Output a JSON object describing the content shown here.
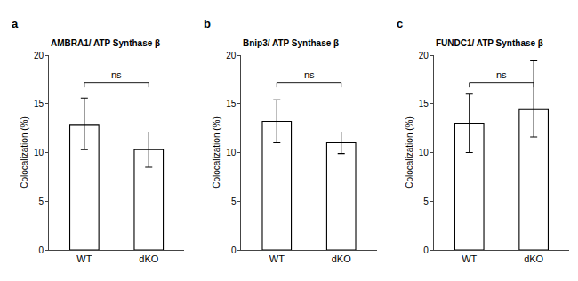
{
  "chart_data": [
    {
      "type": "bar",
      "title": "AMBRA1/ ATP Synthase β",
      "categories": [
        "WT",
        "dKO"
      ],
      "values": [
        12.8,
        10.3
      ],
      "err_low": [
        2.5,
        1.8
      ],
      "err_high": [
        2.8,
        1.8
      ],
      "color": "#ffffff",
      "ylabel": "Colocalization (%)",
      "ylim": [
        0,
        20
      ],
      "yticks": [
        0,
        5,
        10,
        15,
        20
      ],
      "grid": false,
      "annotations": [
        {
          "text": "a"
        },
        {
          "text": "ns",
          "y": 17.2
        }
      ]
    },
    {
      "type": "bar",
      "title": "Bnip3/ ATP Synthase β",
      "categories": [
        "WT",
        "dKO"
      ],
      "values": [
        13.2,
        11.0
      ],
      "err_low": [
        2.2,
        1.1
      ],
      "err_high": [
        2.2,
        1.1
      ],
      "color": "#ffffff",
      "ylabel": "Colocalization (%)",
      "ylim": [
        0,
        20
      ],
      "yticks": [
        0,
        5,
        10,
        15,
        20
      ],
      "grid": false,
      "annotations": [
        {
          "text": "b"
        },
        {
          "text": "ns",
          "y": 17.2
        }
      ]
    },
    {
      "type": "bar",
      "title": "FUNDC1/ ATP Synthase β",
      "categories": [
        "WT",
        "dKO"
      ],
      "values": [
        13.0,
        14.4
      ],
      "err_low": [
        3.0,
        2.8
      ],
      "err_high": [
        3.0,
        5.0
      ],
      "color": "#ffffff",
      "ylabel": "Colocalization (%)",
      "ylim": [
        0,
        20
      ],
      "yticks": [
        0,
        5,
        10,
        15,
        20
      ],
      "grid": false,
      "annotations": [
        {
          "text": "c"
        },
        {
          "text": "ns",
          "y": 17.2
        }
      ]
    }
  ]
}
